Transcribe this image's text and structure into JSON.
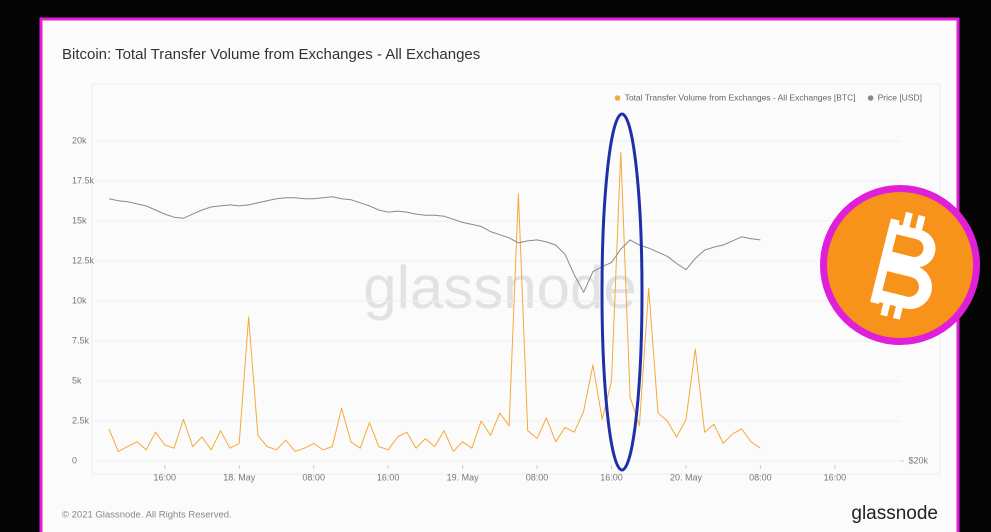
{
  "chart_data": {
    "type": "line",
    "title": "Bitcoin: Total Transfer Volume from Exchanges - All Exchanges",
    "x": [
      10,
      11,
      12,
      13,
      14,
      15,
      16,
      17,
      18,
      19,
      20,
      21,
      22,
      23,
      24,
      25,
      26,
      27,
      28,
      29,
      30,
      31,
      32,
      33,
      34,
      35,
      36,
      37,
      38,
      39,
      40,
      41,
      42,
      43,
      44,
      45,
      46,
      47,
      48,
      49,
      50,
      51,
      52,
      53,
      54,
      55,
      56,
      57,
      58,
      59,
      60,
      61,
      62,
      63,
      64,
      65,
      66,
      67,
      68,
      69,
      70,
      71,
      72,
      73,
      74,
      75,
      76,
      77,
      78,
      79,
      80
    ],
    "xlim": [
      8.5,
      95
    ],
    "xticks": [
      {
        "value": 16,
        "label": "16:00"
      },
      {
        "value": 24,
        "label": "18. May"
      },
      {
        "value": 32,
        "label": "08:00"
      },
      {
        "value": 40,
        "label": "16:00"
      },
      {
        "value": 48,
        "label": "19. May"
      },
      {
        "value": 56,
        "label": "08:00"
      },
      {
        "value": 64,
        "label": "16:00"
      },
      {
        "value": 72,
        "label": "20. May"
      },
      {
        "value": 80,
        "label": "08:00"
      },
      {
        "value": 88,
        "label": "16:00"
      }
    ],
    "ylim": [
      0,
      22500
    ],
    "yticks": [
      0,
      {
        "value": 2500,
        "label": "2.5k"
      },
      {
        "value": 5000,
        "label": "5k"
      },
      {
        "value": 7500,
        "label": "7.5k"
      },
      {
        "value": 10000,
        "label": "10k"
      },
      {
        "value": 12500,
        "label": "12.5k"
      },
      {
        "value": 15000,
        "label": "15k"
      },
      {
        "value": 17500,
        "label": "17.5k"
      },
      {
        "value": 20000,
        "label": "20k"
      }
    ],
    "y2lim": [
      20000,
      55000
    ],
    "y2ticks": [
      {
        "value": 20000,
        "label": "$20k"
      }
    ],
    "grid": true,
    "legend": "top-right",
    "series": [
      {
        "name": "Total Transfer Volume from Exchanges - All Exchanges [BTC]",
        "color": "#f5a93a",
        "values": [
          2000,
          600,
          900,
          1200,
          700,
          1800,
          1000,
          800,
          2600,
          900,
          1500,
          700,
          1900,
          800,
          1100,
          9000,
          1600,
          900,
          700,
          1300,
          600,
          800,
          1100,
          700,
          900,
          3300,
          1200,
          800,
          2400,
          900,
          700,
          1500,
          1800,
          800,
          1400,
          900,
          1900,
          600,
          1200,
          800,
          2500,
          1600,
          3000,
          2200,
          16700,
          1900,
          1400,
          2700,
          1200,
          2100,
          1800,
          3100,
          6000,
          2600,
          5000,
          19300,
          4000,
          2200,
          10800,
          3000,
          2500,
          1500,
          2600,
          7000,
          1800,
          2300,
          1100,
          1700,
          2000,
          1200,
          800
        ]
      },
      {
        "name": "Price [USD]",
        "color": "#8a8a8a",
        "axis": "y2",
        "values": [
          45500,
          45300,
          45200,
          45000,
          44800,
          44400,
          44000,
          43700,
          43600,
          44000,
          44400,
          44700,
          44800,
          44900,
          44800,
          44900,
          45100,
          45300,
          45500,
          45600,
          45600,
          45500,
          45500,
          45600,
          45700,
          45500,
          45400,
          45100,
          44800,
          44400,
          44200,
          44300,
          44200,
          44000,
          43900,
          43900,
          43800,
          43500,
          43200,
          43000,
          42800,
          42300,
          42000,
          41700,
          41200,
          41400,
          41500,
          41300,
          41000,
          40100,
          38100,
          36400,
          38400,
          38900,
          39300,
          40600,
          41500,
          41000,
          40700,
          40300,
          39900,
          39200,
          38600,
          39700,
          40500,
          40800,
          41000,
          41400,
          41800,
          41600,
          41500
        ]
      }
    ]
  },
  "watermark": "glassnode",
  "footer": "© 2021 Glassnode. All Rights Reserved.",
  "brand": "glassnode"
}
